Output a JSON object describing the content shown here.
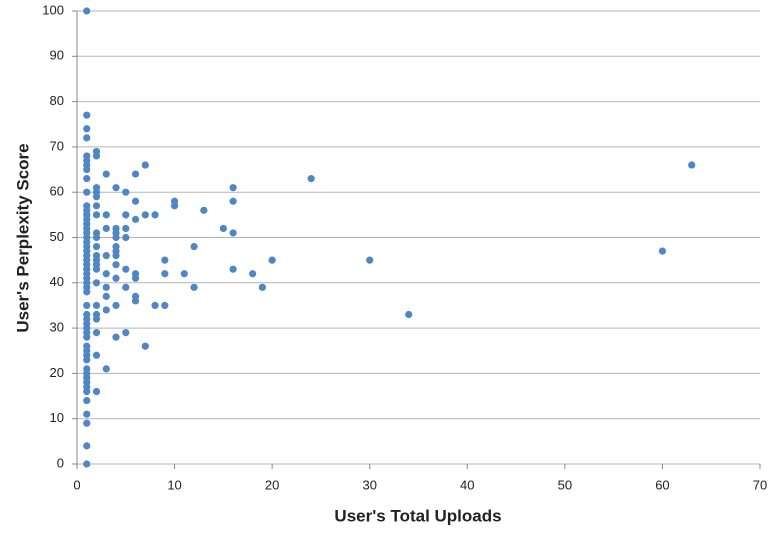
{
  "chart_data": {
    "type": "scatter",
    "x_label": "User's Total Uploads",
    "y_label": "User's Perplexity Score",
    "color": "#4f86c6",
    "grid": true,
    "xlim": [
      0,
      70
    ],
    "xticks": [
      0,
      10,
      20,
      30,
      40,
      50,
      60,
      70
    ],
    "ylim": [
      0,
      100
    ],
    "yticks": [
      0,
      10,
      20,
      30,
      40,
      50,
      60,
      70,
      80,
      90,
      100
    ],
    "x": [
      1,
      1,
      1,
      1,
      1,
      1,
      1,
      1,
      1,
      1,
      1,
      1,
      1,
      1,
      1,
      1,
      1,
      1,
      1,
      1,
      1,
      1,
      1,
      1,
      1,
      1,
      1,
      1,
      1,
      1,
      1,
      1,
      1,
      1,
      1,
      1,
      1,
      1,
      1,
      1,
      1,
      1,
      1,
      1,
      1,
      1,
      1,
      1,
      1,
      1,
      1,
      1,
      2,
      2,
      2,
      2,
      2,
      2,
      2,
      2,
      2,
      2,
      2,
      2,
      2,
      2,
      2,
      2,
      2,
      2,
      2,
      2,
      2,
      3,
      3,
      3,
      3,
      3,
      3,
      3,
      3,
      3,
      4,
      4,
      4,
      4,
      4,
      4,
      4,
      4,
      4,
      4,
      4,
      5,
      5,
      5,
      5,
      5,
      5,
      5,
      6,
      6,
      6,
      6,
      6,
      6,
      6,
      7,
      7,
      7,
      8,
      8,
      9,
      9,
      9,
      10,
      10,
      11,
      12,
      12,
      13,
      15,
      16,
      16,
      16,
      16,
      18,
      19,
      20,
      24,
      30,
      34,
      60,
      63
    ],
    "y": [
      100,
      77,
      74,
      72,
      68,
      67,
      66,
      65,
      63,
      60,
      57,
      56,
      55,
      54,
      53,
      52,
      51,
      50,
      49,
      48,
      47,
      46,
      45,
      44,
      43,
      42,
      41,
      40,
      39,
      38,
      35,
      33,
      32,
      31,
      30,
      29,
      28,
      26,
      25,
      24,
      23,
      21,
      20,
      19,
      18,
      17,
      16,
      14,
      11,
      9,
      4,
      0,
      69,
      68,
      61,
      60,
      59,
      57,
      55,
      51,
      50,
      48,
      46,
      45,
      44,
      43,
      40,
      35,
      33,
      32,
      29,
      24,
      16,
      64,
      55,
      52,
      46,
      42,
      39,
      37,
      34,
      21,
      61,
      52,
      51,
      50,
      48,
      47,
      46,
      44,
      41,
      35,
      28,
      60,
      55,
      52,
      50,
      43,
      39,
      29,
      64,
      58,
      54,
      42,
      41,
      37,
      36,
      66,
      55,
      26,
      55,
      35,
      45,
      42,
      35,
      58,
      57,
      42,
      48,
      39,
      56,
      52,
      61,
      58,
      51,
      43,
      42,
      39,
      45,
      63,
      45,
      33,
      47,
      66
    ]
  }
}
